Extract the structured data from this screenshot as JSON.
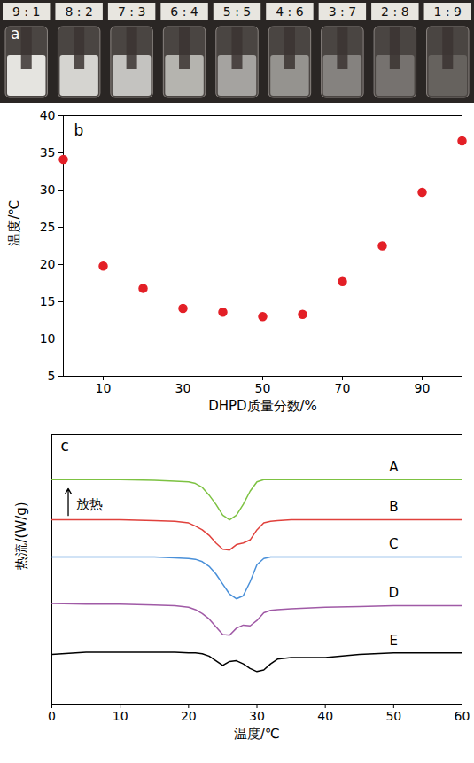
{
  "photo": {
    "label": "a",
    "vials": [
      "9 : 1",
      "8 : 2",
      "7 : 3",
      "6 : 4",
      "5 : 5",
      "4 : 6",
      "3 : 7",
      "2 : 8",
      "1 : 9"
    ]
  },
  "chart_data": [
    {
      "type": "scatter",
      "title": "b",
      "x": [
        0,
        10,
        20,
        30,
        40,
        50,
        60,
        70,
        80,
        90,
        100
      ],
      "values": [
        34.1,
        19.8,
        16.8,
        14.1,
        13.6,
        13.0,
        13.3,
        17.7,
        22.5,
        29.7,
        36.6
      ],
      "color": "#e31f26",
      "marker": "circle",
      "xlabel": "DHPD质量分数/%",
      "ylabel": "温度/℃",
      "xlim": [
        0,
        100
      ],
      "xticks": [
        10,
        30,
        50,
        70,
        90
      ],
      "ylim": [
        5,
        40
      ],
      "yticks": [
        5,
        10,
        15,
        20,
        25,
        30,
        35,
        40
      ]
    },
    {
      "type": "line",
      "title": "c",
      "x": [
        0,
        5,
        10,
        15,
        18,
        20,
        21,
        22,
        23,
        24,
        25,
        26,
        27,
        28,
        29,
        30,
        31,
        32,
        33,
        35,
        40,
        45,
        50,
        55,
        60
      ],
      "series": [
        {
          "name": "A",
          "color": "#7dc242",
          "values": [
            290,
            290,
            290,
            289,
            288,
            287,
            285,
            280,
            270,
            258,
            244,
            238,
            244,
            258,
            275,
            287,
            290,
            290,
            290,
            290,
            290,
            290,
            290,
            290,
            290
          ]
        },
        {
          "name": "B",
          "color": "#e0413c",
          "values": [
            238,
            238,
            238,
            237,
            236,
            234,
            230,
            225,
            218,
            208,
            200,
            199,
            206,
            208,
            212,
            225,
            234,
            236,
            237,
            238,
            238,
            238,
            238,
            238,
            238
          ]
        },
        {
          "name": "C",
          "color": "#4a90d9",
          "values": [
            190,
            190,
            190,
            190,
            189,
            188,
            187,
            184,
            178,
            168,
            155,
            142,
            136,
            140,
            158,
            180,
            188,
            190,
            190,
            190,
            190,
            190,
            190,
            190,
            190
          ]
        },
        {
          "name": "D",
          "color": "#a05aa6",
          "values": [
            130,
            129,
            129,
            128,
            127,
            125,
            122,
            117,
            110,
            100,
            90,
            89,
            98,
            102,
            101,
            108,
            118,
            121,
            122,
            123,
            125,
            126,
            127,
            127,
            127
          ]
        },
        {
          "name": "E",
          "color": "#000000",
          "values": [
            64,
            67,
            67,
            67,
            67,
            66,
            66,
            65,
            62,
            56,
            50,
            55,
            56,
            52,
            46,
            42,
            44,
            52,
            58,
            60,
            60,
            64,
            66,
            66,
            66
          ]
        }
      ],
      "line_style": "solid",
      "xlabel": "温度/℃",
      "ylabel": "热流/(W/g)",
      "annotations": [
        {
          "text": "放热"
        }
      ],
      "xlim": [
        0,
        60
      ],
      "xticks": [
        0,
        10,
        20,
        30,
        40,
        50,
        60
      ],
      "ylim": [
        0,
        348
      ],
      "tick_labels": "x"
    }
  ]
}
